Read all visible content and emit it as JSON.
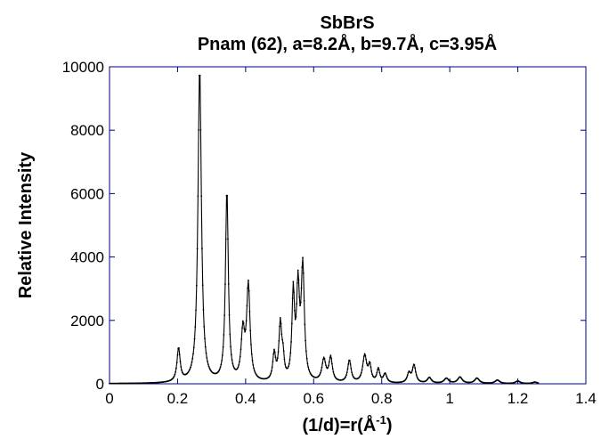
{
  "chart_data": {
    "type": "line",
    "title": "SbBrS",
    "subtitle": "Pnam (62), a=8.2Å, b=9.7Å, c=3.95Å",
    "xlabel_main": "(1/d)=r(Å",
    "xlabel_sup": "-1",
    "xlabel_end": ")",
    "ylabel": "Relative Intensity",
    "xlim": [
      0,
      1.4
    ],
    "ylim": [
      0,
      10000
    ],
    "x_ticks": [
      0,
      0.2,
      0.4,
      0.6,
      0.8,
      1,
      1.2,
      1.4
    ],
    "x_tick_labels": [
      "0",
      "0.2",
      "0.4",
      "0.6",
      "0.8",
      "1",
      "1.2",
      "1.4"
    ],
    "y_ticks": [
      0,
      2000,
      4000,
      6000,
      8000,
      10000
    ],
    "y_tick_labels": [
      "0",
      "2000",
      "4000",
      "6000",
      "8000",
      "10000"
    ],
    "grid": false,
    "series": [
      {
        "peaks": [
          {
            "x": 0.203,
            "y": 1050,
            "w": 0.0055
          },
          {
            "x": 0.265,
            "y": 9950,
            "w": 0.006
          },
          {
            "x": 0.345,
            "y": 6050,
            "w": 0.005
          },
          {
            "x": 0.392,
            "y": 1500,
            "w": 0.006
          },
          {
            "x": 0.408,
            "y": 3000,
            "w": 0.006
          },
          {
            "x": 0.484,
            "y": 850,
            "w": 0.005
          },
          {
            "x": 0.502,
            "y": 1780,
            "w": 0.005
          },
          {
            "x": 0.51,
            "y": 600,
            "w": 0.004
          },
          {
            "x": 0.54,
            "y": 2700,
            "w": 0.0045
          },
          {
            "x": 0.554,
            "y": 2800,
            "w": 0.005
          },
          {
            "x": 0.568,
            "y": 3550,
            "w": 0.0055
          },
          {
            "x": 0.63,
            "y": 700,
            "w": 0.007
          },
          {
            "x": 0.65,
            "y": 760,
            "w": 0.006
          },
          {
            "x": 0.705,
            "y": 700,
            "w": 0.006
          },
          {
            "x": 0.75,
            "y": 850,
            "w": 0.007
          },
          {
            "x": 0.765,
            "y": 500,
            "w": 0.005
          },
          {
            "x": 0.79,
            "y": 420,
            "w": 0.005
          },
          {
            "x": 0.81,
            "y": 280,
            "w": 0.006
          },
          {
            "x": 0.88,
            "y": 300,
            "w": 0.006
          },
          {
            "x": 0.895,
            "y": 560,
            "w": 0.006
          },
          {
            "x": 0.94,
            "y": 180,
            "w": 0.007
          },
          {
            "x": 0.99,
            "y": 160,
            "w": 0.008
          },
          {
            "x": 1.03,
            "y": 200,
            "w": 0.008
          },
          {
            "x": 1.08,
            "y": 170,
            "w": 0.008
          },
          {
            "x": 1.14,
            "y": 110,
            "w": 0.008
          },
          {
            "x": 1.2,
            "y": 80,
            "w": 0.008
          },
          {
            "x": 1.25,
            "y": 50,
            "w": 0.008
          }
        ],
        "range": [
          0.0,
          1.26
        ],
        "color": "#000000"
      }
    ]
  }
}
